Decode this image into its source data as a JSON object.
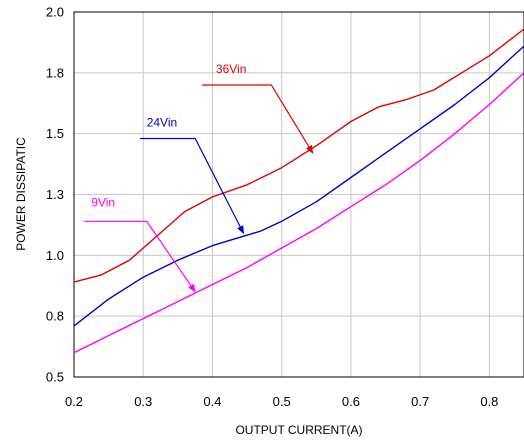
{
  "chart_data": {
    "type": "line",
    "xlabel": "OUTPUT CURRENT(A)",
    "ylabel": "POWER DISSIPATIC",
    "xlim": [
      0.2,
      0.85
    ],
    "ylim": [
      0.5,
      2.0
    ],
    "grid": true,
    "x_ticks": [
      "0.2",
      "0.3",
      "0.4",
      "0.5",
      "0.6",
      "0.7",
      "0.8"
    ],
    "y_ticks": [
      "0.5",
      "0.8",
      "1.0",
      "1.3",
      "1.5",
      "1.8",
      "2.0"
    ],
    "series": [
      {
        "name": "36Vin",
        "color": "#e00000",
        "points": [
          [
            0.2,
            0.89
          ],
          [
            0.24,
            0.92
          ],
          [
            0.28,
            0.98
          ],
          [
            0.32,
            1.08
          ],
          [
            0.36,
            1.18
          ],
          [
            0.4,
            1.24
          ],
          [
            0.45,
            1.29
          ],
          [
            0.5,
            1.36
          ],
          [
            0.55,
            1.45
          ],
          [
            0.6,
            1.55
          ],
          [
            0.64,
            1.61
          ],
          [
            0.68,
            1.64
          ],
          [
            0.72,
            1.68
          ],
          [
            0.76,
            1.75
          ],
          [
            0.8,
            1.82
          ],
          [
            0.85,
            1.93
          ]
        ]
      },
      {
        "name": "24Vin",
        "color": "#0000cc",
        "points": [
          [
            0.2,
            0.71
          ],
          [
            0.25,
            0.82
          ],
          [
            0.3,
            0.91
          ],
          [
            0.35,
            0.98
          ],
          [
            0.4,
            1.04
          ],
          [
            0.47,
            1.1
          ],
          [
            0.5,
            1.14
          ],
          [
            0.55,
            1.22
          ],
          [
            0.6,
            1.32
          ],
          [
            0.65,
            1.42
          ],
          [
            0.7,
            1.52
          ],
          [
            0.75,
            1.62
          ],
          [
            0.8,
            1.73
          ],
          [
            0.85,
            1.86
          ]
        ]
      },
      {
        "name": "9Vin",
        "color": "#ff00ff",
        "points": [
          [
            0.2,
            0.6
          ],
          [
            0.25,
            0.67
          ],
          [
            0.3,
            0.74
          ],
          [
            0.35,
            0.81
          ],
          [
            0.4,
            0.88
          ],
          [
            0.45,
            0.95
          ],
          [
            0.5,
            1.03
          ],
          [
            0.55,
            1.11
          ],
          [
            0.6,
            1.2
          ],
          [
            0.65,
            1.29
          ],
          [
            0.7,
            1.39
          ],
          [
            0.75,
            1.5
          ],
          [
            0.8,
            1.62
          ],
          [
            0.85,
            1.75
          ]
        ]
      }
    ],
    "annotations": [
      {
        "text": "36Vin",
        "color": "#e00000",
        "label_at": [
          0.405,
          1.75
        ],
        "elbow": [
          0.385,
          1.7
        ],
        "knee": [
          0.485,
          1.7
        ],
        "arrow_to": [
          0.545,
          1.42
        ]
      },
      {
        "text": "24Vin",
        "color": "#0000cc",
        "label_at": [
          0.305,
          1.53
        ],
        "elbow": [
          0.295,
          1.48
        ],
        "knee": [
          0.375,
          1.48
        ],
        "arrow_to": [
          0.445,
          1.09
        ]
      },
      {
        "text": "9Vin",
        "color": "#ff00ff",
        "label_at": [
          0.225,
          1.2
        ],
        "elbow": [
          0.215,
          1.14
        ],
        "knee": [
          0.305,
          1.14
        ],
        "arrow_to": [
          0.375,
          0.85
        ]
      }
    ]
  }
}
